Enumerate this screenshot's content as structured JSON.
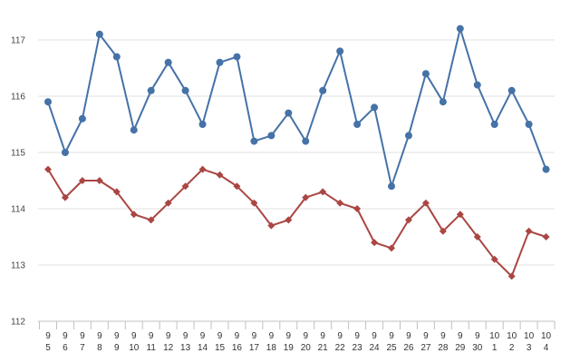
{
  "chart_data": {
    "type": "line",
    "x": [
      {
        "month": "9",
        "day": "5"
      },
      {
        "month": "9",
        "day": "6"
      },
      {
        "month": "9",
        "day": "7"
      },
      {
        "month": "9",
        "day": "8"
      },
      {
        "month": "9",
        "day": "9"
      },
      {
        "month": "9",
        "day": "10"
      },
      {
        "month": "9",
        "day": "11"
      },
      {
        "month": "9",
        "day": "12"
      },
      {
        "month": "9",
        "day": "13"
      },
      {
        "month": "9",
        "day": "14"
      },
      {
        "month": "9",
        "day": "15"
      },
      {
        "month": "9",
        "day": "16"
      },
      {
        "month": "9",
        "day": "17"
      },
      {
        "month": "9",
        "day": "18"
      },
      {
        "month": "9",
        "day": "19"
      },
      {
        "month": "9",
        "day": "20"
      },
      {
        "month": "9",
        "day": "21"
      },
      {
        "month": "9",
        "day": "22"
      },
      {
        "month": "9",
        "day": "23"
      },
      {
        "month": "9",
        "day": "24"
      },
      {
        "month": "9",
        "day": "25"
      },
      {
        "month": "9",
        "day": "26"
      },
      {
        "month": "9",
        "day": "27"
      },
      {
        "month": "9",
        "day": "28"
      },
      {
        "month": "9",
        "day": "29"
      },
      {
        "month": "9",
        "day": "30"
      },
      {
        "month": "10",
        "day": "1"
      },
      {
        "month": "10",
        "day": "2"
      },
      {
        "month": "10",
        "day": "3"
      },
      {
        "month": "10",
        "day": "4"
      }
    ],
    "series": [
      {
        "color": "#4572a7",
        "marker": "circle",
        "values": [
          115.9,
          115.0,
          115.6,
          117.1,
          116.7,
          115.4,
          116.1,
          116.6,
          116.1,
          115.5,
          116.6,
          116.7,
          115.2,
          115.3,
          115.7,
          115.2,
          116.1,
          116.8,
          115.5,
          115.8,
          114.4,
          115.3,
          116.4,
          115.9,
          117.2,
          116.2,
          115.5,
          116.1,
          115.5,
          114.7
        ]
      },
      {
        "color": "#aa4643",
        "marker": "diamond",
        "values": [
          114.7,
          114.2,
          114.5,
          114.5,
          114.3,
          113.9,
          113.8,
          114.1,
          114.4,
          114.7,
          114.6,
          114.4,
          114.1,
          113.7,
          113.8,
          114.2,
          114.3,
          114.1,
          114.0,
          113.4,
          113.3,
          113.8,
          114.1,
          113.6,
          113.9,
          113.5,
          113.1,
          112.8,
          113.6,
          113.5
        ]
      }
    ],
    "yticks": [
      112,
      113,
      114,
      115,
      116,
      117
    ],
    "ylim": [
      112,
      117.5
    ],
    "title": "",
    "xlabel": "",
    "ylabel": "",
    "grid": true,
    "legend": "none"
  }
}
